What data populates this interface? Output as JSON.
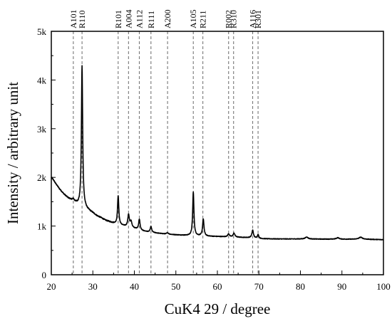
{
  "chart_data": {
    "type": "line",
    "xlabel": "CuK4  29 / degree",
    "ylabel": "Intensity / arbitrary unit",
    "xlim": [
      20,
      100
    ],
    "ylim": [
      0,
      5000
    ],
    "x_ticks": [
      20,
      30,
      40,
      50,
      60,
      70,
      80,
      90,
      100
    ],
    "x_tick_labels": [
      "20",
      "30",
      "40",
      "50",
      "60",
      "70",
      "80",
      "90",
      "100"
    ],
    "y_ticks": [
      0,
      1000,
      2000,
      3000,
      4000,
      5000
    ],
    "y_tick_labels": [
      "0",
      "1k",
      "2k",
      "3k",
      "4k",
      "5k"
    ],
    "grid": false,
    "reference_lines": [
      {
        "x": 25.3,
        "label": "A101"
      },
      {
        "x": 27.4,
        "label": "R110"
      },
      {
        "x": 36.1,
        "label": "R101"
      },
      {
        "x": 38.6,
        "label": "A004"
      },
      {
        "x": 41.2,
        "label": "A112"
      },
      {
        "x": 44.0,
        "label": "R111"
      },
      {
        "x": 48.0,
        "label": "A200"
      },
      {
        "x": 54.2,
        "label": "A105"
      },
      {
        "x": 56.5,
        "label": "R211"
      },
      {
        "x": 62.7,
        "label": "R002"
      },
      {
        "x": 63.9,
        "label": "R310"
      },
      {
        "x": 68.5,
        "label": "A116"
      },
      {
        "x": 69.8,
        "label": "R301"
      }
    ],
    "baseline": [
      [
        20,
        2000
      ],
      [
        20.5,
        1950
      ],
      [
        21,
        1880
      ],
      [
        22,
        1760
      ],
      [
        23,
        1660
      ],
      [
        24,
        1580
      ],
      [
        25,
        1530
      ],
      [
        25.5,
        1500
      ],
      [
        26,
        1470
      ],
      [
        26.5,
        1440
      ],
      [
        27,
        1410
      ],
      [
        28,
        1370
      ],
      [
        29,
        1320
      ],
      [
        30,
        1270
      ],
      [
        31,
        1210
      ],
      [
        32,
        1170
      ],
      [
        33,
        1120
      ],
      [
        34,
        1090
      ],
      [
        35,
        1060
      ],
      [
        36,
        1030
      ],
      [
        37,
        1010
      ],
      [
        38,
        990
      ],
      [
        40,
        950
      ],
      [
        42,
        900
      ],
      [
        44,
        870
      ],
      [
        46,
        850
      ],
      [
        48,
        830
      ],
      [
        50,
        820
      ],
      [
        52,
        810
      ],
      [
        55,
        800
      ],
      [
        58,
        790
      ],
      [
        62,
        780
      ],
      [
        65,
        770
      ],
      [
        68,
        760
      ],
      [
        70,
        740
      ],
      [
        75,
        735
      ],
      [
        80,
        735
      ],
      [
        85,
        732
      ],
      [
        90,
        730
      ],
      [
        95,
        730
      ],
      [
        100,
        720
      ]
    ],
    "peaks": [
      {
        "x": 25.3,
        "height": 40,
        "width": 0.2
      },
      {
        "x": 27.4,
        "height": 2900,
        "width": 0.18
      },
      {
        "x": 36.1,
        "height": 600,
        "width": 0.18
      },
      {
        "x": 38.6,
        "height": 250,
        "width": 0.22
      },
      {
        "x": 39.2,
        "height": 120,
        "width": 0.25
      },
      {
        "x": 41.2,
        "height": 220,
        "width": 0.2
      },
      {
        "x": 44.0,
        "height": 120,
        "width": 0.2
      },
      {
        "x": 48.0,
        "height": 30,
        "width": 0.3
      },
      {
        "x": 54.2,
        "height": 900,
        "width": 0.18
      },
      {
        "x": 56.6,
        "height": 350,
        "width": 0.2
      },
      {
        "x": 62.7,
        "height": 60,
        "width": 0.25
      },
      {
        "x": 64.0,
        "height": 80,
        "width": 0.25
      },
      {
        "x": 68.5,
        "height": 160,
        "width": 0.22
      },
      {
        "x": 69.8,
        "height": 80,
        "width": 0.22
      },
      {
        "x": 81.5,
        "height": 40,
        "width": 0.4
      },
      {
        "x": 89.0,
        "height": 30,
        "width": 0.4
      },
      {
        "x": 94.5,
        "height": 40,
        "width": 0.5
      }
    ]
  }
}
